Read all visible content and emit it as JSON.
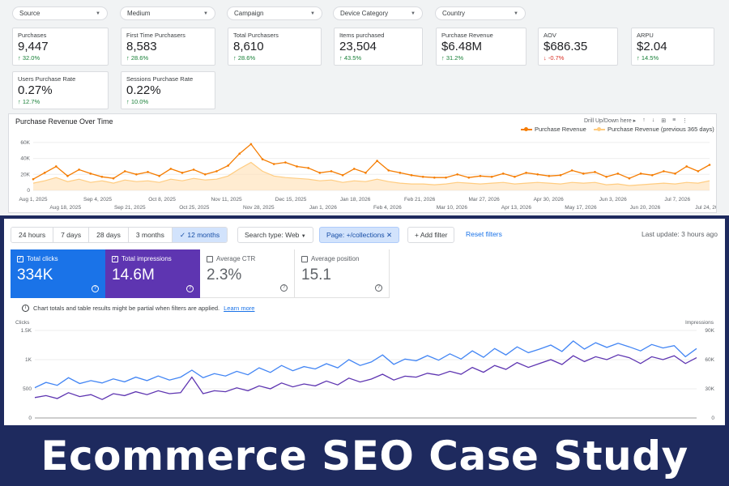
{
  "analytics": {
    "filters": [
      {
        "label": "Source"
      },
      {
        "label": "Medium"
      },
      {
        "label": "Campaign"
      },
      {
        "label": "Device Category"
      },
      {
        "label": "Country"
      }
    ],
    "metrics": [
      {
        "label": "Purchases",
        "value": "9,447",
        "change": "32.0%",
        "trend": "up"
      },
      {
        "label": "First Time Purchasers",
        "value": "8,583",
        "change": "28.6%",
        "trend": "up"
      },
      {
        "label": "Total Purchasers",
        "value": "8,610",
        "change": "28.6%",
        "trend": "up"
      },
      {
        "label": "Items purchased",
        "value": "23,504",
        "change": "43.5%",
        "trend": "up"
      },
      {
        "label": "Purchase Revenue",
        "value": "$6.48M",
        "change": "31.2%",
        "trend": "up"
      },
      {
        "label": "AOV",
        "value": "$686.35",
        "change": "-0.7%",
        "trend": "down"
      },
      {
        "label": "ARPU",
        "value": "$2.04",
        "change": "14.5%",
        "trend": "up"
      },
      {
        "label": "Users Purchase Rate",
        "value": "0.27%",
        "change": "12.7%",
        "trend": "up"
      },
      {
        "label": "Sessions Purchase Rate",
        "value": "0.22%",
        "change": "10.0%",
        "trend": "up"
      }
    ],
    "revenue_chart": {
      "title": "Purchase Revenue Over Time",
      "drill_label": "Drill Up/Down here ▸",
      "legend": [
        "Purchase Revenue",
        "Purchase Revenue (previous 365 days)"
      ]
    }
  },
  "search_console": {
    "ranges": [
      "24 hours",
      "7 days",
      "28 days",
      "3 months",
      "12 months"
    ],
    "active_range": "12 months",
    "search_type_label": "Search type: Web",
    "page_filter_label": "Page: +/collections",
    "add_filter_label": "Add filter",
    "reset_label": "Reset filters",
    "last_update": "Last update: 3 hours ago",
    "cards": [
      {
        "label": "Total clicks",
        "value": "334K",
        "checked": true
      },
      {
        "label": "Total impressions",
        "value": "14.6M",
        "checked": true
      },
      {
        "label": "Average CTR",
        "value": "2.3%",
        "checked": false
      },
      {
        "label": "Average position",
        "value": "15.1",
        "checked": false
      }
    ],
    "notice": "Chart totals and table results might be partial when filters are applied.",
    "learn_more": "Learn more",
    "left_axis_title": "Clicks",
    "right_axis_title": "Impressions"
  },
  "banner": {
    "title": "Ecommerce SEO Case Study"
  },
  "colors": {
    "revenue": "#f57c00",
    "revenue_prev": "#ffcc80",
    "clicks": "#4285f4",
    "impressions": "#5e35b1",
    "banner_bg": "#1e2a5e"
  },
  "chart_data": [
    {
      "type": "line",
      "title": "Purchase Revenue Over Time",
      "x_ticks": [
        "Aug 1, 2025",
        "Aug 18, 2025",
        "Sep 4, 2025",
        "Sep 21, 2025",
        "Oct 8, 2025",
        "Oct 25, 2025",
        "Nov 11, 2025",
        "Nov 28, 2025",
        "Dec 15, 2025",
        "Jan 1, 2026",
        "Jan 18, 2026",
        "Feb 4, 2026",
        "Feb 21, 2026",
        "Mar 10, 2026",
        "Mar 27, 2026",
        "Apr 13, 2026",
        "Apr 30, 2026",
        "May 17, 2026",
        "Jun 3, 2026",
        "Jun 20, 2026",
        "Jul 7, 2026",
        "Jul 24, 2026"
      ],
      "y_ticks": [
        "60K",
        "40K",
        "20K",
        "0"
      ],
      "ylim": [
        0,
        65000
      ],
      "series": [
        {
          "name": "Purchase Revenue",
          "values": [
            14000,
            22000,
            30000,
            18000,
            26000,
            21000,
            17000,
            15000,
            24000,
            20000,
            23000,
            18000,
            27000,
            22000,
            26000,
            20000,
            24000,
            31000,
            46000,
            58000,
            39000,
            33000,
            35000,
            30000,
            28000,
            22000,
            24000,
            19000,
            27000,
            22000,
            37000,
            25000,
            22000,
            19000,
            17000,
            16000,
            16000,
            20000,
            16000,
            18000,
            17000,
            21000,
            17000,
            22000,
            20000,
            18000,
            19000,
            25000,
            21000,
            23000,
            17000,
            21000,
            15000,
            21000,
            19000,
            24000,
            21000,
            30000,
            24000,
            32000
          ]
        },
        {
          "name": "Purchase Revenue (previous 365 days)",
          "values": [
            9000,
            12000,
            16000,
            11000,
            14000,
            10000,
            12000,
            9000,
            13000,
            11000,
            12000,
            10000,
            14000,
            12000,
            15000,
            13000,
            14000,
            18000,
            27000,
            35000,
            24000,
            18000,
            16000,
            15000,
            14000,
            12000,
            13000,
            10000,
            12000,
            11000,
            14000,
            11000,
            9000,
            8000,
            8000,
            7000,
            8000,
            10000,
            9000,
            8000,
            9000,
            10000,
            8000,
            9000,
            10000,
            9000,
            8000,
            10000,
            9000,
            10000,
            7000,
            8000,
            6000,
            7000,
            8000,
            9000,
            8000,
            10000,
            9000,
            12000
          ]
        }
      ]
    },
    {
      "type": "line",
      "y_title_left": "Clicks",
      "y_title_right": "Impressions",
      "y_ticks_left": [
        "1.5K",
        "1K",
        "500",
        "0"
      ],
      "y_ticks_right": [
        "90K",
        "60K",
        "30K",
        "0"
      ],
      "ylim_left": [
        0,
        1500
      ],
      "ylim_right": [
        0,
        90000
      ],
      "series": [
        {
          "name": "Total clicks",
          "axis": "left",
          "values": [
            520,
            610,
            560,
            690,
            590,
            640,
            600,
            670,
            620,
            700,
            640,
            720,
            650,
            700,
            820,
            690,
            760,
            720,
            800,
            740,
            860,
            780,
            900,
            810,
            880,
            840,
            930,
            860,
            1000,
            900,
            960,
            1080,
            920,
            1010,
            980,
            1070,
            990,
            1100,
            1010,
            1150,
            1040,
            1190,
            1080,
            1220,
            1120,
            1180,
            1250,
            1140,
            1320,
            1180,
            1290,
            1210,
            1280,
            1220,
            1150,
            1260,
            1200,
            1240,
            1050,
            1190
          ]
        },
        {
          "name": "Total impressions",
          "axis": "right",
          "values": [
            21000,
            23000,
            20000,
            26000,
            22000,
            24000,
            19000,
            25000,
            23000,
            27000,
            24000,
            28000,
            25000,
            26000,
            42000,
            25000,
            28000,
            27000,
            31000,
            28000,
            33000,
            30000,
            36000,
            32000,
            35000,
            33000,
            38000,
            34000,
            41000,
            37000,
            40000,
            45000,
            39000,
            43000,
            42000,
            46000,
            44000,
            48000,
            45000,
            52000,
            47000,
            54000,
            50000,
            57000,
            52000,
            56000,
            60000,
            55000,
            64000,
            58000,
            63000,
            60000,
            65000,
            62000,
            56000,
            63000,
            60000,
            64000,
            56000,
            62000
          ]
        }
      ]
    }
  ]
}
